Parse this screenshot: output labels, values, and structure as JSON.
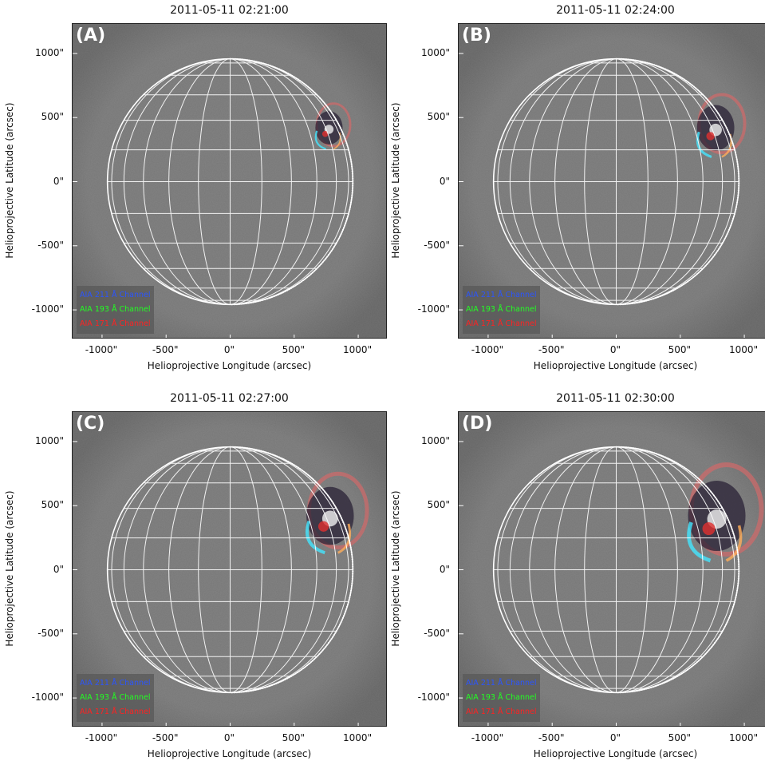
{
  "colors": {
    "background": "#6a6a6a",
    "grid": "#ffffff",
    "legend_211": "#2b55ff",
    "legend_193": "#22ff22",
    "legend_171": "#ff2222"
  },
  "axes": {
    "xlabel": "Helioprojective Longitude (arcsec)",
    "ylabel": "Helioprojective Latitude (arcsec)",
    "xticks": [
      "-1000\"",
      "-500\"",
      "0\"",
      "500\"",
      "1000\""
    ],
    "yticks": [
      "1000\"",
      "500\"",
      "0\"",
      "-500\"",
      "-1000\""
    ],
    "range_arcsec": [
      -1230,
      1230
    ]
  },
  "legend": {
    "ch211": "AIA 211 Å Channel",
    "ch193": "AIA 193 Å Channel",
    "ch171": "AIA 171 Å Channel"
  },
  "panels": [
    {
      "title": "2011-05-11 02:21:00",
      "letter": "(A)",
      "event_stage": 1
    },
    {
      "title": "2011-05-11 02:24:00",
      "letter": "(B)",
      "event_stage": 2
    },
    {
      "title": "2011-05-11 02:27:00",
      "letter": "(C)",
      "event_stage": 3
    },
    {
      "title": "2011-05-11 02:30:00",
      "letter": "(D)",
      "event_stage": 4
    }
  ]
}
